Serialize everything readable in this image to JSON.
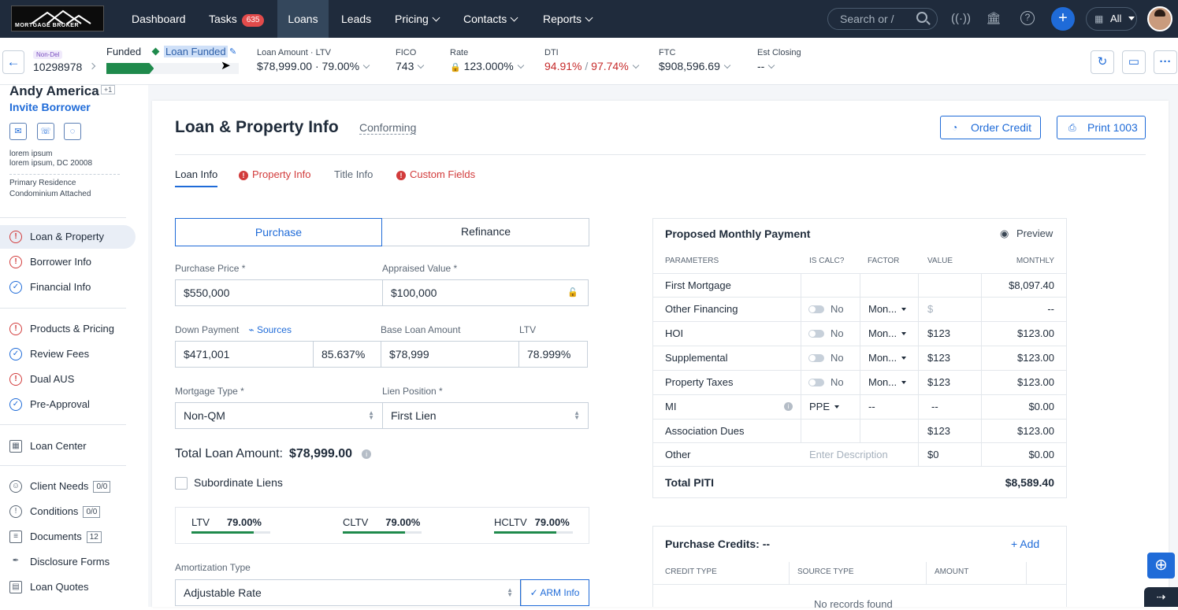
{
  "nav": {
    "logo_text": "MORTGAGE BROKER",
    "items": [
      "Dashboard",
      "Tasks",
      "Loans",
      "Leads",
      "Pricing",
      "Contacts",
      "Reports"
    ],
    "tasks_count": "635",
    "search_placeholder": "Search or /",
    "all_label": "All"
  },
  "header": {
    "tag": "Non-Del",
    "loan_number": "10298978",
    "status": "Funded",
    "stage": "Loan Funded",
    "progress_fraction": 0.36,
    "loan_amount_label": "Loan Amount",
    "ltv_label": "LTV",
    "loan_amount": "$78,999.00",
    "ltv": "79.00%",
    "fico_label": "FICO",
    "fico": "743",
    "rate_label": "Rate",
    "rate": "123.000%",
    "dti_label": "DTI",
    "dti_front": "94.91%",
    "dti_back": "97.74%",
    "ftc_label": "FTC",
    "ftc": "$908,596.69",
    "est_closing_label": "Est Closing",
    "est_closing": "--"
  },
  "sidebar": {
    "borrower_name": "Andy America",
    "co_count": "+1",
    "invite": "Invite Borrower",
    "addr1": "lorem ipsum",
    "addr2": "lorem ipsum, DC 20008",
    "occupancy": "Primary Residence",
    "property_type": "Condominium Attached",
    "items": [
      {
        "label": "Loan & Property",
        "status": "error"
      },
      {
        "label": "Borrower Info",
        "status": "error"
      },
      {
        "label": "Financial Info",
        "status": "ok"
      },
      {
        "label": "Products & Pricing",
        "status": "error"
      },
      {
        "label": "Review Fees",
        "status": "ok"
      },
      {
        "label": "Dual AUS",
        "status": "error"
      },
      {
        "label": "Pre-Approval",
        "status": "ok"
      },
      {
        "label": "Loan Center",
        "status": "none"
      },
      {
        "label": "Client Needs",
        "count": "0/0"
      },
      {
        "label": "Conditions",
        "count": "0/0"
      },
      {
        "label": "Documents",
        "count": "12"
      },
      {
        "label": "Disclosure Forms"
      },
      {
        "label": "Loan Quotes"
      }
    ]
  },
  "main": {
    "title": "Loan & Property Info",
    "subtitle": "Conforming",
    "order_credit": "Order Credit",
    "print_1003": "Print 1003",
    "tabs": [
      "Loan Info",
      "Property Info",
      "Title Info",
      "Custom Fields"
    ],
    "purpose": [
      "Purchase",
      "Refinance"
    ],
    "purchase_price_label": "Purchase Price *",
    "purchase_price": "$550,000",
    "appraised_value_label": "Appraised Value *",
    "appraised_value": "$100,000",
    "down_payment_label": "Down Payment",
    "sources": "Sources",
    "down_payment": "$471,001",
    "down_pct": "85.637%",
    "base_loan_label": "Base Loan Amount",
    "base_loan": "$78,999",
    "ltv_label": "LTV",
    "ltv": "78.999%",
    "mortgage_type_label": "Mortgage Type *",
    "mortgage_type": "Non-QM",
    "lien_position_label": "Lien Position *",
    "lien_position": "First Lien",
    "total_loan_label": "Total Loan Amount:",
    "total_loan": "$78,999.00",
    "subordinate_liens": "Subordinate Liens",
    "ratios": [
      {
        "label": "LTV",
        "value": "79.00%",
        "fraction": 0.79
      },
      {
        "label": "CLTV",
        "value": "79.00%",
        "fraction": 0.79
      },
      {
        "label": "HCLTV",
        "value": "79.00%",
        "fraction": 0.79
      }
    ],
    "amortization_label": "Amortization Type",
    "amortization": "Adjustable Rate",
    "arm_info": "ARM Info"
  },
  "payment": {
    "title": "Proposed Monthly Payment",
    "preview": "Preview",
    "headers": [
      "PARAMETERS",
      "IS CALC?",
      "FACTOR",
      "VALUE",
      "MONTHLY"
    ],
    "rows": [
      {
        "param": "First Mortgage",
        "calc": "",
        "factor": "",
        "value": "",
        "monthly": "$8,097.40"
      },
      {
        "param": "Other Financing",
        "calc": "No",
        "factor": "Mon...",
        "value": "$",
        "monthly": "--"
      },
      {
        "param": "HOI",
        "calc": "No",
        "factor": "Mon...",
        "value": "$123",
        "monthly": "$123.00"
      },
      {
        "param": "Supplemental",
        "calc": "No",
        "factor": "Mon...",
        "value": "$123",
        "monthly": "$123.00"
      },
      {
        "param": "Property Taxes",
        "calc": "No",
        "factor": "Mon...",
        "value": "$123",
        "monthly": "$123.00"
      },
      {
        "param": "MI",
        "calc": "PPE",
        "factor": "--",
        "value": "--",
        "monthly": "$0.00"
      },
      {
        "param": "Association Dues",
        "calc": "",
        "factor": "",
        "value": "$123",
        "monthly": "$123.00"
      },
      {
        "param": "Other",
        "calc": "Enter Description",
        "factor": "",
        "value": "$0",
        "monthly": "$0.00"
      }
    ],
    "total_label": "Total PITI",
    "total": "$8,589.40"
  },
  "credits": {
    "title": "Purchase Credits: --",
    "add": "+ Add",
    "headers": [
      "CREDIT TYPE",
      "SOURCE TYPE",
      "AMOUNT"
    ],
    "empty": "No records found"
  },
  "colors": {
    "nav_bg": "#1f2b3c",
    "accent": "#1f6bd8",
    "error": "#d23b3b",
    "success": "#1f8a4c"
  }
}
